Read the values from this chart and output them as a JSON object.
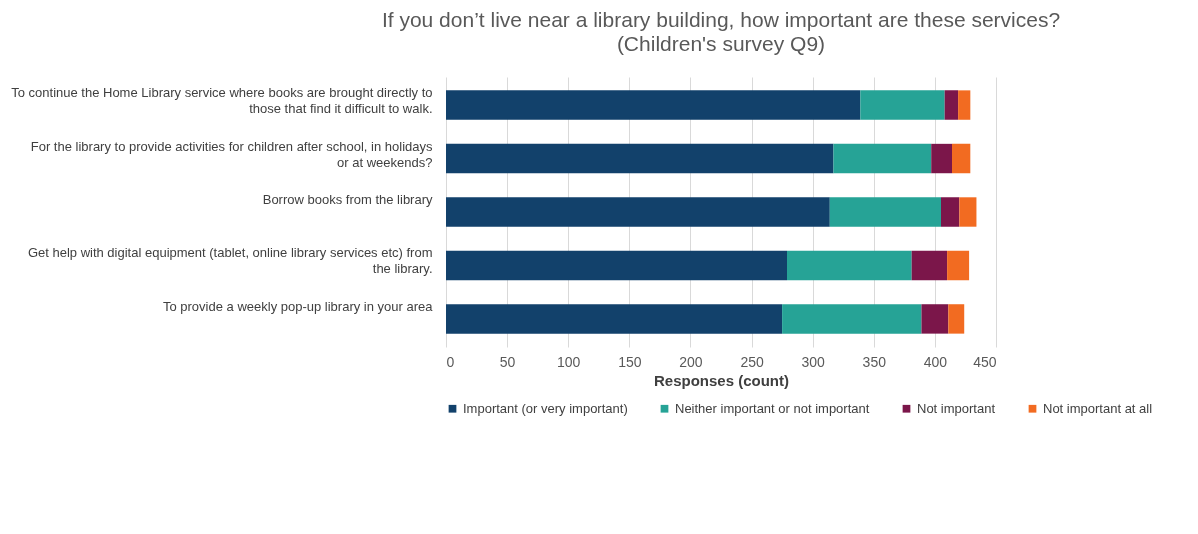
{
  "chart_data": {
    "type": "bar",
    "orientation": "horizontal",
    "stacked": true,
    "title": "If you don’t live near a library building, how important are these services?",
    "subtitle": "(Children's survey Q9)",
    "xlabel": "Responses (count)",
    "categories": [
      "To continue the Home Library service where books are brought directly to those that find it difficult to walk.",
      "For the library to provide activities for children after school, in holidays or at weekends?",
      "Borrow books from the library",
      "Get help with digital equipment (tablet, online library services etc) from the library.",
      "To provide a weekly pop-up library in your area"
    ],
    "series": [
      {
        "name": "Important (or very important)",
        "color": "#12416b",
        "values": [
          339,
          317,
          314,
          279,
          275
        ]
      },
      {
        "name": "Neither important or not important",
        "color": "#26a396",
        "values": [
          69,
          80,
          91,
          102,
          114
        ]
      },
      {
        "name": "Not important",
        "color": "#7b164a",
        "values": [
          11,
          17,
          15,
          29,
          22
        ]
      },
      {
        "name": "Not important at all",
        "color": "#f26b21",
        "values": [
          10,
          15,
          14,
          18,
          13
        ]
      }
    ],
    "xlim": [
      0,
      450
    ],
    "xticks": [
      0,
      50,
      100,
      150,
      200,
      250,
      300,
      350,
      400,
      450
    ],
    "grid": "x",
    "legend": "bottom"
  }
}
